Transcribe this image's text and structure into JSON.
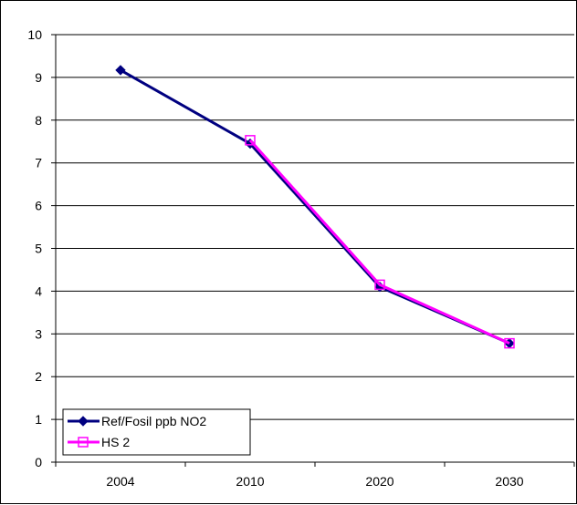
{
  "chart_data": {
    "type": "line",
    "title": "",
    "xlabel": "",
    "ylabel": "",
    "categories": [
      "2004",
      "2010",
      "2020",
      "2030"
    ],
    "ylim": [
      0,
      10
    ],
    "yticks": [
      "0",
      "1",
      "2",
      "3",
      "4",
      "5",
      "6",
      "7",
      "8",
      "9",
      "10"
    ],
    "grid": "horizontal",
    "legend_position": "bottom-left",
    "series": [
      {
        "name": "Ref/Fosil ppb NO2",
        "values": [
          9.17,
          7.45,
          4.1,
          2.78
        ],
        "color": "#000080",
        "marker": "filled-diamond"
      },
      {
        "name": "HS 2",
        "values": [
          null,
          7.53,
          4.15,
          2.78
        ],
        "color": "#FF00FF",
        "marker": "hollow-square"
      }
    ]
  }
}
